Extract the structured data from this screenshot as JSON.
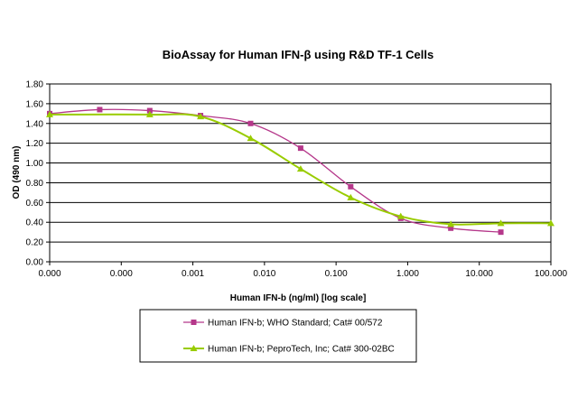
{
  "chart_data": {
    "type": "line",
    "title": "BioAssay for Human IFN-β using R&D TF-1 Cells",
    "xlabel": "Human IFN-b (ng/ml) [log scale]",
    "ylabel": "OD (490 nm)",
    "x_scale": "log",
    "x_tick_labels": [
      "0.000",
      "0.000",
      "0.001",
      "0.010",
      "0.100",
      "1.000",
      "10.000",
      "100.000"
    ],
    "x_tick_values": [
      1e-05,
      0.0001,
      0.001,
      0.01,
      0.1,
      1,
      10,
      100
    ],
    "xlim": [
      1e-05,
      100
    ],
    "ylim": [
      0,
      1.8
    ],
    "y_tick_labels": [
      "0.00",
      "0.20",
      "0.40",
      "0.60",
      "0.80",
      "1.00",
      "1.20",
      "1.40",
      "1.60",
      "1.80"
    ],
    "grid": "horizontal",
    "legend_position": "bottom",
    "series": [
      {
        "name": "Human IFN-b; WHO Standard; Cat# 00/572",
        "color": "#b5378a",
        "marker": "square",
        "x": [
          1e-05,
          5e-05,
          0.00025,
          0.00128,
          0.0064,
          0.032,
          0.16,
          0.8,
          4,
          20
        ],
        "y": [
          1.5,
          1.54,
          1.53,
          1.48,
          1.4,
          1.15,
          0.76,
          0.44,
          0.34,
          0.3
        ]
      },
      {
        "name": "Human IFN-b; PeproTech, Inc; Cat# 300-02BC",
        "color": "#99cc00",
        "marker": "triangle",
        "x": [
          1e-05,
          0.00025,
          0.00128,
          0.0064,
          0.032,
          0.16,
          0.8,
          4,
          20,
          100
        ],
        "y": [
          1.49,
          1.49,
          1.47,
          1.25,
          0.94,
          0.65,
          0.46,
          0.38,
          0.39,
          0.39
        ]
      }
    ]
  }
}
